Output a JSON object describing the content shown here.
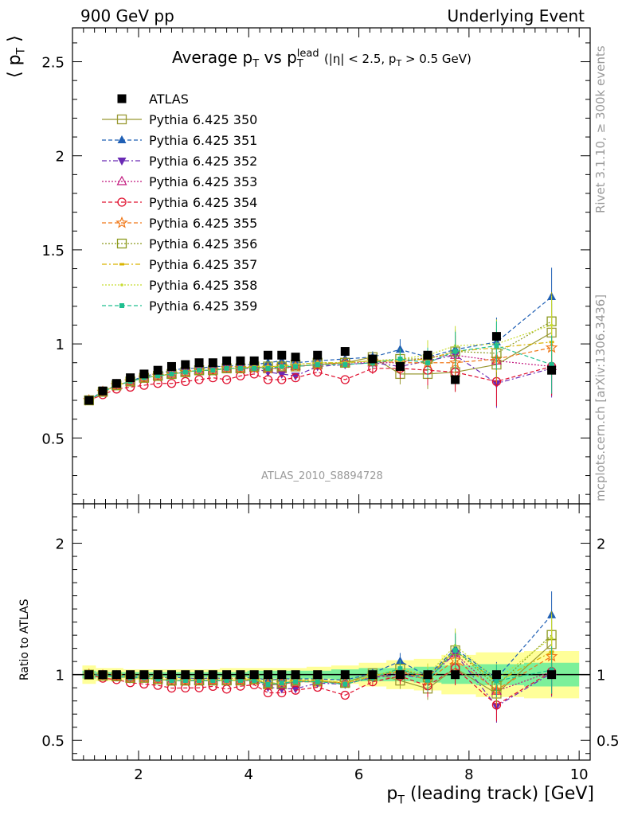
{
  "header": {
    "left": "900 GeV pp",
    "right": "Underlying Event"
  },
  "side_text": {
    "rivet": "Rivet 3.1.10, ≥ 300k events",
    "source": "mcplots.cern.ch [arXiv:1306.3436]"
  },
  "watermark": "ATLAS_2010_S8894728",
  "title_parts": {
    "main": "Average p",
    "sub1": "T",
    "vs": " vs p",
    "sup": "lead",
    "sub2": "T",
    "cuts": " (|η| < 2.5, p",
    "cuts_sub": "T",
    "cuts_end": " > 0.5 GeV)"
  },
  "ylabel_top": "⟨ p_T ⟩",
  "ylabel_bottom": "Ratio to ATLAS",
  "xlabel": "p_T (leading track) [GeV]",
  "chart_data": [
    {
      "type": "scatter",
      "panel": "main",
      "xlim": [
        0.8,
        10.2
      ],
      "ylim": [
        0.15,
        2.68
      ],
      "xticks": [
        "2",
        "4",
        "6",
        "8",
        "10"
      ],
      "yticks": [
        "0.5",
        "1",
        "1.5",
        "2",
        "2.5"
      ],
      "x": [
        1.1,
        1.35,
        1.6,
        1.85,
        2.1,
        2.35,
        2.6,
        2.85,
        3.1,
        3.35,
        3.6,
        3.85,
        4.1,
        4.35,
        4.6,
        4.85,
        5.25,
        5.75,
        6.25,
        6.75,
        7.25,
        7.75,
        8.5,
        9.5
      ],
      "series": [
        {
          "name": "ATLAS",
          "color": "#000000",
          "marker": "square-filled",
          "line": "none",
          "values": [
            0.7,
            0.75,
            0.79,
            0.82,
            0.84,
            0.86,
            0.88,
            0.89,
            0.9,
            0.9,
            0.91,
            0.91,
            0.91,
            0.94,
            0.94,
            0.93,
            0.94,
            0.96,
            0.92,
            0.88,
            0.94,
            0.81,
            1.04,
            0.86
          ]
        },
        {
          "name": "Pythia 6.425 350",
          "color": "#999933",
          "marker": "square-open",
          "line": "solid",
          "values": [
            0.7,
            0.745,
            0.78,
            0.8,
            0.82,
            0.83,
            0.84,
            0.85,
            0.86,
            0.86,
            0.87,
            0.87,
            0.88,
            0.87,
            0.87,
            0.88,
            0.89,
            0.9,
            0.93,
            0.84,
            0.84,
            0.85,
            0.89,
            1.06
          ]
        },
        {
          "name": "Pythia 6.425 351",
          "color": "#1f5fb4",
          "marker": "triangle-up-filled",
          "line": "dashed",
          "values": [
            0.7,
            0.75,
            0.78,
            0.8,
            0.83,
            0.84,
            0.86,
            0.87,
            0.87,
            0.88,
            0.88,
            0.89,
            0.89,
            0.9,
            0.91,
            0.9,
            0.91,
            0.92,
            0.93,
            0.97,
            0.93,
            0.97,
            1.01,
            1.25
          ]
        },
        {
          "name": "Pythia 6.425 352",
          "color": "#6a2ab4",
          "marker": "triangle-down-filled",
          "line": "dashdot",
          "values": [
            0.7,
            0.745,
            0.78,
            0.8,
            0.82,
            0.83,
            0.84,
            0.85,
            0.86,
            0.86,
            0.87,
            0.87,
            0.87,
            0.85,
            0.84,
            0.83,
            0.88,
            0.89,
            0.9,
            0.88,
            0.91,
            0.94,
            0.79,
            0.87
          ]
        },
        {
          "name": "Pythia 6.425 353",
          "color": "#c2187e",
          "marker": "triangle-up-open",
          "line": "dotted",
          "values": [
            0.7,
            0.745,
            0.78,
            0.8,
            0.82,
            0.83,
            0.84,
            0.85,
            0.86,
            0.86,
            0.87,
            0.87,
            0.87,
            0.87,
            0.87,
            0.88,
            0.89,
            0.9,
            0.9,
            0.9,
            0.93,
            0.94,
            0.91,
            0.88
          ]
        },
        {
          "name": "Pythia 6.425 354",
          "color": "#e0102f",
          "marker": "circle-open",
          "line": "dashed",
          "values": [
            0.7,
            0.73,
            0.76,
            0.77,
            0.78,
            0.79,
            0.79,
            0.8,
            0.81,
            0.82,
            0.81,
            0.83,
            0.84,
            0.81,
            0.81,
            0.82,
            0.85,
            0.81,
            0.87,
            0.87,
            0.86,
            0.85,
            0.8,
            0.88
          ]
        },
        {
          "name": "Pythia 6.425 355",
          "color": "#f07818",
          "marker": "star-open",
          "line": "dashed",
          "values": [
            0.7,
            0.745,
            0.78,
            0.8,
            0.82,
            0.83,
            0.84,
            0.85,
            0.86,
            0.86,
            0.87,
            0.87,
            0.87,
            0.87,
            0.88,
            0.88,
            0.89,
            0.9,
            0.91,
            0.9,
            0.9,
            0.9,
            0.92,
            0.98
          ]
        },
        {
          "name": "Pythia 6.425 356",
          "color": "#8c9a1e",
          "marker": "square-open",
          "line": "dotted",
          "values": [
            0.7,
            0.745,
            0.78,
            0.8,
            0.82,
            0.83,
            0.84,
            0.85,
            0.86,
            0.86,
            0.87,
            0.87,
            0.88,
            0.88,
            0.88,
            0.89,
            0.9,
            0.9,
            0.91,
            0.92,
            0.92,
            0.96,
            0.95,
            1.12
          ]
        },
        {
          "name": "Pythia 6.425 357",
          "color": "#d9b400",
          "marker": "dash",
          "line": "dashdot",
          "values": [
            0.7,
            0.745,
            0.78,
            0.8,
            0.82,
            0.83,
            0.84,
            0.85,
            0.86,
            0.86,
            0.87,
            0.87,
            0.88,
            0.88,
            0.88,
            0.89,
            0.9,
            0.9,
            0.91,
            0.91,
            0.92,
            0.96,
            0.98,
            1.01
          ]
        },
        {
          "name": "Pythia 6.425 358",
          "color": "#c8dc32",
          "marker": "dot",
          "line": "dotted",
          "values": [
            0.7,
            0.745,
            0.78,
            0.8,
            0.82,
            0.83,
            0.84,
            0.85,
            0.86,
            0.86,
            0.87,
            0.87,
            0.88,
            0.88,
            0.88,
            0.89,
            0.9,
            0.9,
            0.91,
            0.92,
            0.94,
            0.99,
            1.0,
            1.1
          ]
        },
        {
          "name": "Pythia 6.425 359",
          "color": "#1fbf8f",
          "marker": "square-filled-small",
          "line": "dashed",
          "values": [
            0.7,
            0.745,
            0.78,
            0.8,
            0.82,
            0.83,
            0.84,
            0.85,
            0.86,
            0.86,
            0.87,
            0.87,
            0.87,
            0.87,
            0.88,
            0.88,
            0.89,
            0.89,
            0.9,
            0.92,
            0.9,
            0.96,
            0.99,
            0.89
          ]
        }
      ]
    },
    {
      "type": "scatter",
      "panel": "ratio",
      "xlim": [
        0.8,
        10.2
      ],
      "ylim": [
        0.35,
        2.3
      ],
      "yticks": [
        "0.5",
        "1",
        "2"
      ],
      "band_inner_halfwidth": [
        0.03,
        0.02,
        0.02,
        0.02,
        0.02,
        0.02,
        0.02,
        0.02,
        0.02,
        0.02,
        0.02,
        0.02,
        0.03,
        0.03,
        0.03,
        0.03,
        0.03,
        0.04,
        0.05,
        0.05,
        0.06,
        0.07,
        0.08,
        0.09
      ],
      "band_outer_halfwidth": [
        0.07,
        0.05,
        0.05,
        0.04,
        0.04,
        0.04,
        0.04,
        0.04,
        0.04,
        0.04,
        0.05,
        0.05,
        0.05,
        0.05,
        0.05,
        0.05,
        0.06,
        0.07,
        0.09,
        0.11,
        0.12,
        0.15,
        0.17,
        0.18
      ],
      "band_colors": {
        "inner": "#7cf09a",
        "outer": "#ffff99"
      },
      "note": "ratio values = model / ATLAS per bin"
    }
  ]
}
